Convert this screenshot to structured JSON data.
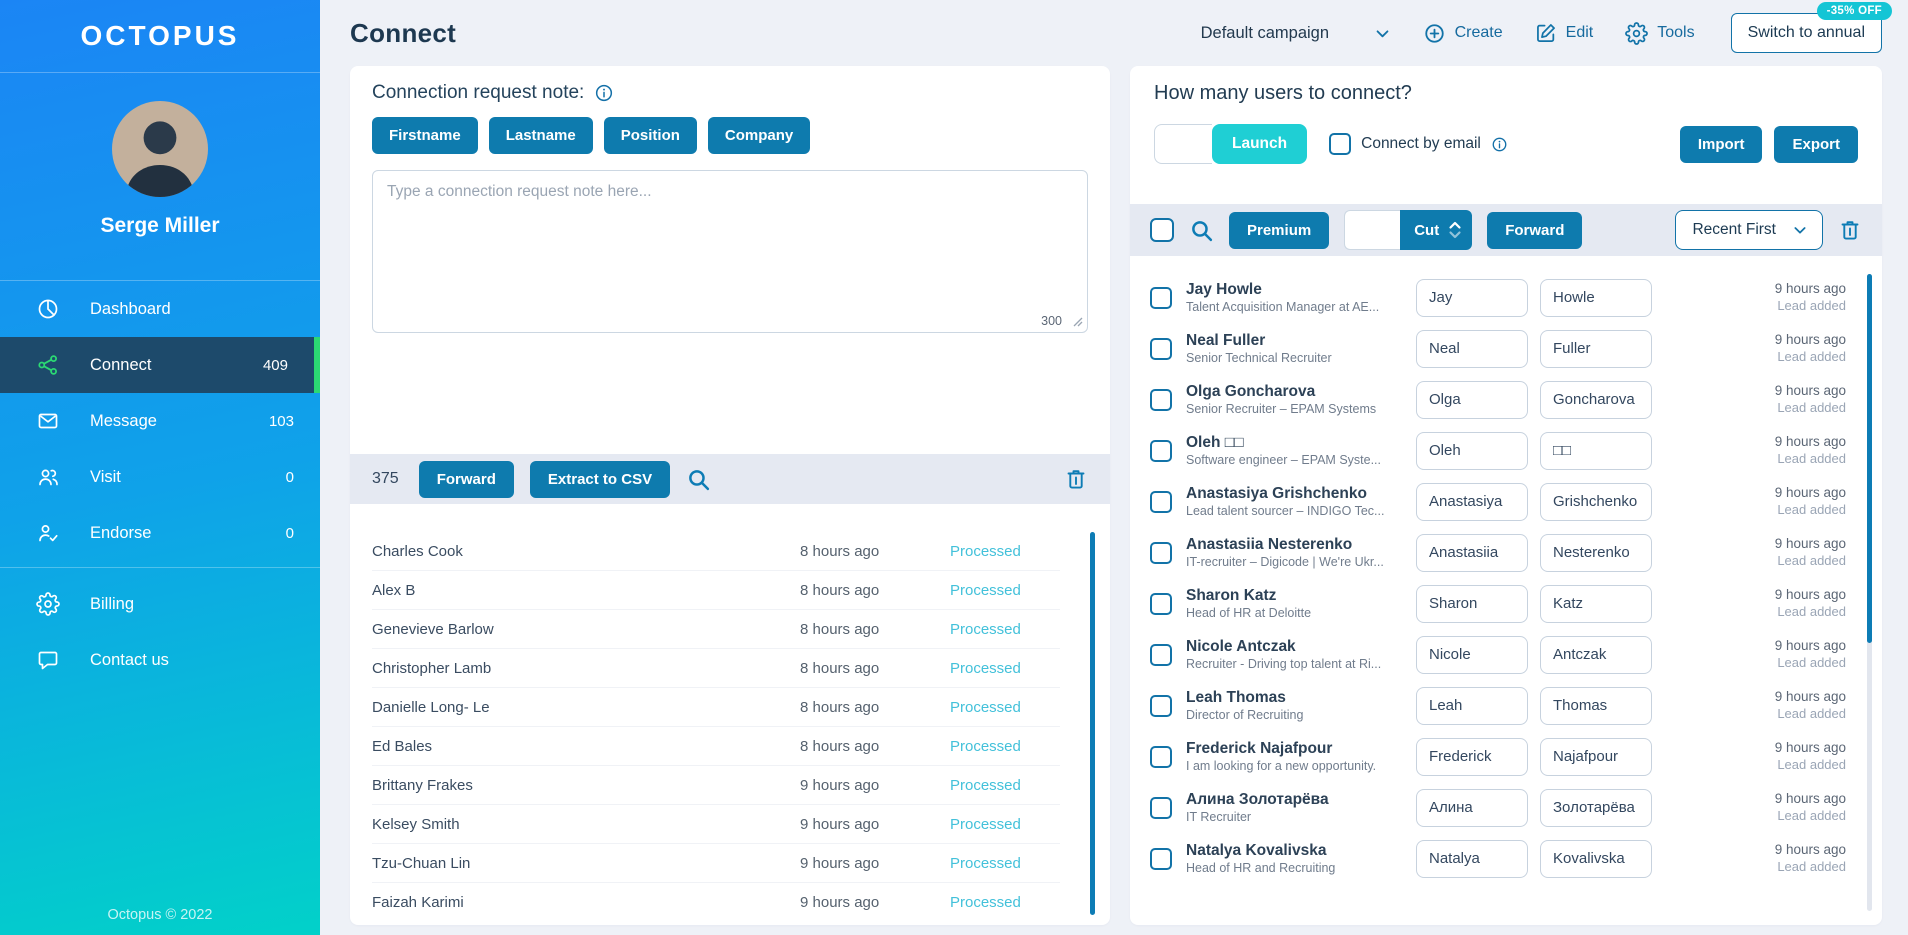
{
  "colors": {
    "sidebar_gradient_top": "#1b85f5",
    "sidebar_gradient_bottom": "#02d1c9",
    "primary_button": "#0e7bae",
    "launch_button": "#1fcfd4",
    "badge": "#14c5d5",
    "active_item": "#1d4a6b",
    "active_icon_green": "#2bd973",
    "processed_status": "#43c1da"
  },
  "sidebar": {
    "logo": "OCTOPUS",
    "user_name": "Serge Miller",
    "menu": [
      {
        "label": "Dashboard",
        "icon": "pie-chart",
        "count": "",
        "active": false
      },
      {
        "label": "Connect",
        "icon": "share",
        "count": "409",
        "active": true
      },
      {
        "label": "Message",
        "icon": "envelope",
        "count": "103",
        "active": false
      },
      {
        "label": "Visit",
        "icon": "people",
        "count": "0",
        "active": false
      },
      {
        "label": "Endorse",
        "icon": "person-check",
        "count": "0",
        "active": false
      }
    ],
    "secondary_menu": [
      {
        "label": "Billing",
        "icon": "gear",
        "count": "",
        "active": false
      },
      {
        "label": "Contact us",
        "icon": "chat",
        "count": "",
        "active": false
      }
    ],
    "footer": "Octopus © 2022"
  },
  "header": {
    "title": "Connect",
    "campaign_selector": "Default campaign",
    "create_label": "Create",
    "edit_label": "Edit",
    "tools_label": "Tools",
    "switch_button": "Switch to annual",
    "discount_badge": "-35% OFF"
  },
  "note_panel": {
    "title": "Connection request note:",
    "tokens": [
      "Firstname",
      "Lastname",
      "Position",
      "Company"
    ],
    "placeholder": "Type a connection request note here...",
    "char_limit": "300"
  },
  "processed_panel": {
    "count": "375",
    "forward_label": "Forward",
    "extract_label": "Extract to CSV",
    "rows": [
      {
        "name": "Charles Cook",
        "time": "8 hours ago",
        "status": "Processed"
      },
      {
        "name": "Alex B",
        "time": "8 hours ago",
        "status": "Processed"
      },
      {
        "name": "Genevieve Barlow",
        "time": "8 hours ago",
        "status": "Processed"
      },
      {
        "name": "Christopher Lamb",
        "time": "8 hours ago",
        "status": "Processed"
      },
      {
        "name": "Danielle Long- Le",
        "time": "8 hours ago",
        "status": "Processed"
      },
      {
        "name": "Ed Bales",
        "time": "8 hours ago",
        "status": "Processed"
      },
      {
        "name": "Brittany Frakes",
        "time": "9 hours ago",
        "status": "Processed"
      },
      {
        "name": "Kelsey Smith",
        "time": "9 hours ago",
        "status": "Processed"
      },
      {
        "name": "Tzu-Chuan Lin",
        "time": "9 hours ago",
        "status": "Processed"
      },
      {
        "name": "Faizah Karimi",
        "time": "9 hours ago",
        "status": "Processed"
      }
    ]
  },
  "connect_panel": {
    "title": "How many users to connect?",
    "launch_label": "Launch",
    "connect_by_email_label": "Connect by email",
    "import_label": "Import",
    "export_label": "Export",
    "premium_label": "Premium",
    "cut_label": "Cut",
    "forward_label": "Forward",
    "sort_label": "Recent First",
    "users": [
      {
        "name": "Jay Howle",
        "subtitle": "Talent Acquisition Manager at AE...",
        "first": "Jay",
        "last": "Howle",
        "time": "9 hours ago",
        "status": "Lead added"
      },
      {
        "name": "Neal Fuller",
        "subtitle": "Senior Technical Recruiter",
        "first": "Neal",
        "last": "Fuller",
        "time": "9 hours ago",
        "status": "Lead added"
      },
      {
        "name": "Olga Goncharova",
        "subtitle": "Senior Recruiter – EPAM Systems",
        "first": "Olga",
        "last": "Goncharova",
        "time": "9 hours ago",
        "status": "Lead added"
      },
      {
        "name": "Oleh □□",
        "subtitle": "Software engineer – EPAM Syste...",
        "first": "Oleh",
        "last": "□□",
        "time": "9 hours ago",
        "status": "Lead added"
      },
      {
        "name": "Anastasiya Grishchenko",
        "subtitle": "Lead talent sourcer – INDIGO Tec...",
        "first": "Anastasiya",
        "last": "Grishchenko",
        "time": "9 hours ago",
        "status": "Lead added"
      },
      {
        "name": "Anastasiia Nesterenko",
        "subtitle": "IT-recruiter – Digicode | We're Ukr...",
        "first": "Anastasiia",
        "last": "Nesterenko",
        "time": "9 hours ago",
        "status": "Lead added"
      },
      {
        "name": "Sharon Katz",
        "subtitle": "Head of HR at Deloitte",
        "first": "Sharon",
        "last": "Katz",
        "time": "9 hours ago",
        "status": "Lead added"
      },
      {
        "name": "Nicole Antczak",
        "subtitle": "Recruiter - Driving top talent at Ri...",
        "first": "Nicole",
        "last": "Antczak",
        "time": "9 hours ago",
        "status": "Lead added"
      },
      {
        "name": "Leah Thomas",
        "subtitle": "Director of Recruiting",
        "first": "Leah",
        "last": "Thomas",
        "time": "9 hours ago",
        "status": "Lead added"
      },
      {
        "name": "Frederick Najafpour",
        "subtitle": "I am looking for a new opportunity.",
        "first": "Frederick",
        "last": "Najafpour",
        "time": "9 hours ago",
        "status": "Lead added"
      },
      {
        "name": "Алина Золотарёва",
        "subtitle": "IT Recruiter",
        "first": "Алина",
        "last": "Золотарёва",
        "time": "9 hours ago",
        "status": "Lead added"
      },
      {
        "name": "Natalya Kovalivska",
        "subtitle": "Head of HR and Recruiting",
        "first": "Natalya",
        "last": "Kovalivska",
        "time": "9 hours ago",
        "status": "Lead added"
      }
    ]
  }
}
